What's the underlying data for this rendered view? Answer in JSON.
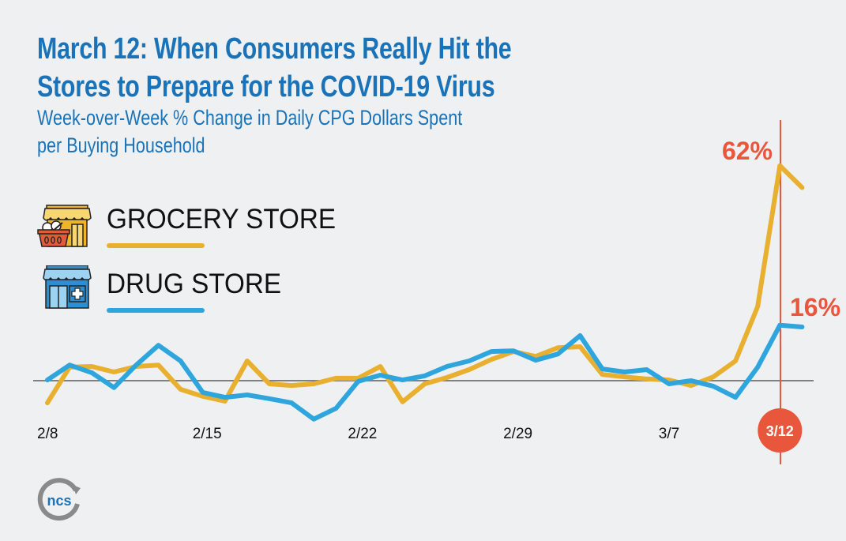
{
  "header": {
    "title_line1": "March 12: When Consumers Really Hit the",
    "title_line2": "Stores to Prepare for the COVID-19 Virus",
    "subtitle_line1": "Week-over-Week % Change in Daily CPG Dollars Spent",
    "subtitle_line2": "per Buying Household"
  },
  "legend": [
    {
      "label": "GROCERY STORE",
      "icon": "grocery-store-icon",
      "color": "#e8b02e"
    },
    {
      "label": "DRUG STORE",
      "icon": "drug-store-icon",
      "color": "#2ea6dd"
    }
  ],
  "logo": {
    "text": "ncs"
  },
  "colors": {
    "title": "#1a73b8",
    "accent": "#e8573b",
    "grocery": "#e8b02e",
    "drug": "#2ea6dd",
    "baseline": "#808080"
  },
  "chart_data": {
    "type": "line",
    "title": "Week-over-Week % Change in Daily CPG Dollars Spent per Buying Household",
    "xlabel": "",
    "ylabel": "",
    "x": [
      "2/8",
      "2/9",
      "2/10",
      "2/11",
      "2/12",
      "2/13",
      "2/14",
      "2/15",
      "2/16",
      "2/17",
      "2/18",
      "2/19",
      "2/20",
      "2/21",
      "2/22",
      "2/23",
      "2/24",
      "2/25",
      "2/26",
      "2/27",
      "2/28",
      "2/29",
      "3/1",
      "3/2",
      "3/3",
      "3/4",
      "3/5",
      "3/6",
      "3/7",
      "3/8",
      "3/9",
      "3/10",
      "3/11",
      "3/12",
      "3/13"
    ],
    "tick_labels": [
      "2/8",
      "2/15",
      "2/22",
      "2/29",
      "3/7"
    ],
    "tick_indices": [
      0,
      7,
      14,
      21,
      28
    ],
    "highlight": {
      "label": "3/12",
      "index": 33
    },
    "series": [
      {
        "name": "GROCERY STORE",
        "values": [
          -6.4,
          3.9,
          4.1,
          2.5,
          4.1,
          4.5,
          -2.5,
          -4.5,
          -5.9,
          5.7,
          -0.9,
          -1.4,
          -0.9,
          0.7,
          0.7,
          4.1,
          -6.1,
          -0.9,
          0.9,
          3.2,
          6.1,
          8.4,
          7.0,
          9.5,
          9.8,
          1.8,
          1.1,
          0.5,
          0.2,
          -1.4,
          1.1,
          5.7,
          21.4,
          62,
          55.7
        ],
        "annotation": "62%"
      },
      {
        "name": "DRUG STORE",
        "values": [
          0.2,
          4.5,
          2.3,
          -2.0,
          4.5,
          10.2,
          5.7,
          -3.4,
          -4.8,
          -4.1,
          -5.2,
          -6.4,
          -11.1,
          -8.0,
          -0.2,
          1.6,
          0.2,
          1.4,
          4.1,
          5.7,
          8.4,
          8.6,
          5.9,
          7.7,
          13.0,
          3.4,
          2.5,
          3.2,
          -0.9,
          0.0,
          -1.6,
          -4.8,
          3.9,
          16,
          15.5
        ],
        "annotation": "16%"
      }
    ],
    "ylim": [
      -15,
      70
    ],
    "grid": false,
    "legend_position": "left"
  }
}
